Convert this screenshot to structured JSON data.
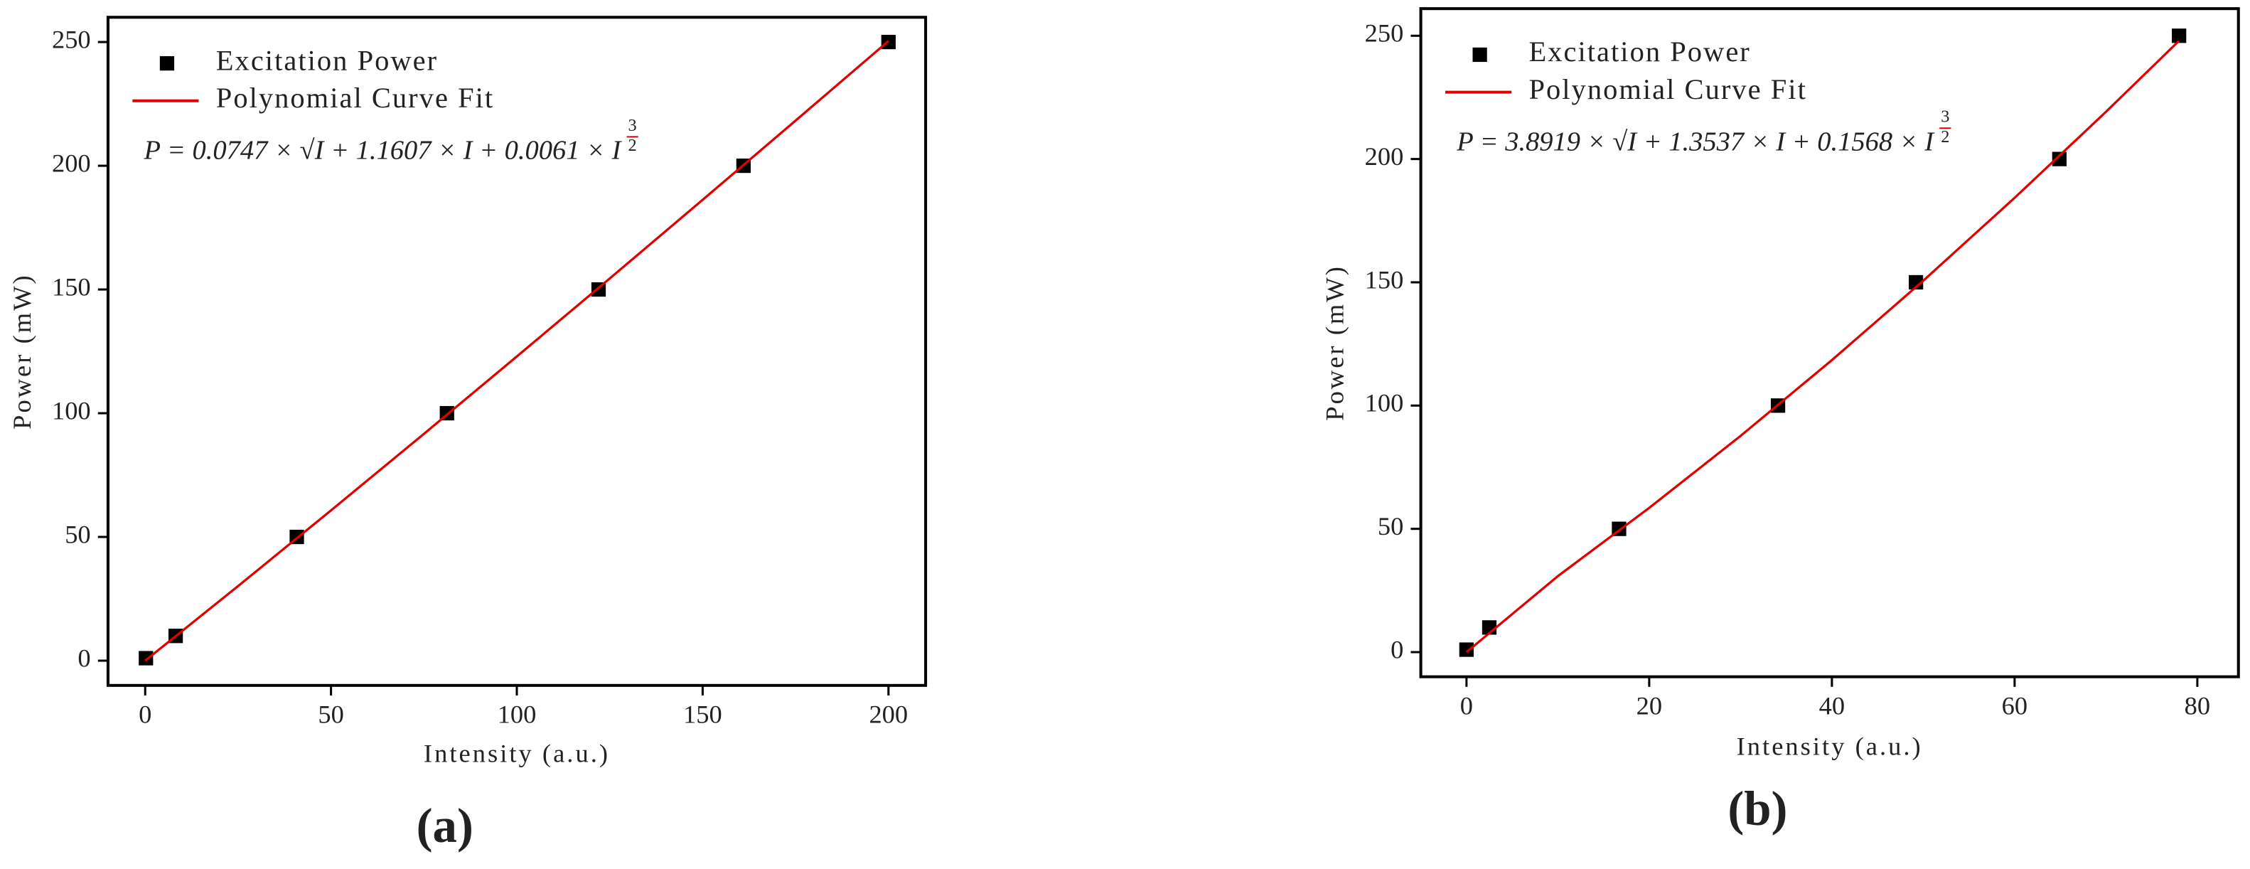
{
  "chart_data": [
    {
      "type": "scatter",
      "label": "(a)",
      "xlabel": "Intensity (a.u.)",
      "ylabel": "Power (mW)",
      "annotation": "P = 0.0747 × √I + 1.1607 × I + 0.0061 × I",
      "annotation_exponent": [
        "3",
        "2"
      ],
      "annotation_color": "#e00000",
      "legend": "upper left",
      "xlim": [
        -10,
        210
      ],
      "ylim": [
        -10,
        260
      ],
      "xticks": [
        0,
        50,
        100,
        150,
        200
      ],
      "yticks": [
        0,
        50,
        100,
        150,
        200,
        250
      ],
      "series": [
        {
          "name": "Excitation Power",
          "color": "#000000",
          "type": "scatter",
          "x": [
            0.2,
            8.2,
            40.8,
            81.2,
            122,
            161,
            200
          ],
          "values": [
            1,
            10,
            50,
            100,
            150,
            200,
            250
          ]
        },
        {
          "name": "Polynomial Curve Fit",
          "color": "#e00000",
          "type": "line",
          "x": [
            0,
            25,
            50,
            75,
            100,
            125,
            150,
            175,
            200
          ],
          "values": [
            0,
            30.15,
            60.73,
            91.66,
            122.92,
            154.45,
            186.23,
            218.23,
            250.41
          ]
        }
      ]
    },
    {
      "type": "scatter",
      "label": "(b)",
      "xlabel": "Intensity (a.u.)",
      "ylabel": "Power (mW)",
      "annotation": "P = 3.8919 × √I + 1.3537 × I + 0.1568 × I",
      "annotation_exponent": [
        "3",
        "2"
      ],
      "annotation_color": "#e00000",
      "legend": "upper left",
      "xlim": [
        -5,
        84.5
      ],
      "ylim": [
        -10,
        261
      ],
      "xticks": [
        0,
        20,
        40,
        60,
        80
      ],
      "yticks": [
        0,
        50,
        100,
        150,
        200,
        250
      ],
      "series": [
        {
          "name": "Excitation Power",
          "color": "#000000",
          "type": "scatter",
          "x": [
            0,
            2.5,
            16.7,
            34.1,
            49.2,
            64.9,
            78
          ],
          "values": [
            1,
            10,
            50,
            100,
            150,
            200,
            250
          ]
        },
        {
          "name": "Polynomial Curve Fit",
          "color": "#e00000",
          "type": "line",
          "x": [
            0,
            10,
            20,
            30,
            40,
            50,
            60,
            70,
            78
          ],
          "values": [
            0,
            30.81,
            58.5,
            87.69,
            118.44,
            150.65,
            184.25,
            219.15,
            247.96
          ]
        }
      ]
    }
  ]
}
